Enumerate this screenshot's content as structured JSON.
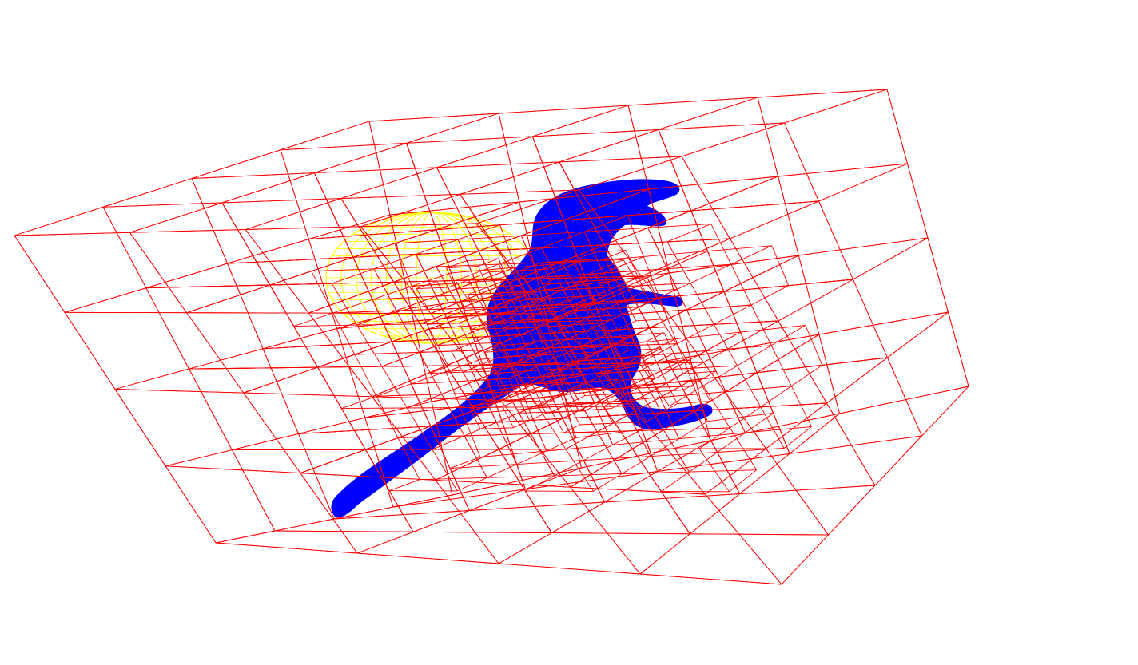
{
  "scene": {
    "background_color": "#ffffff",
    "objects": [
      {
        "name": "octree-bounding-cells",
        "kind": "wireframe-octree",
        "color": "#ff0000"
      },
      {
        "name": "ellipsoid-mesh",
        "kind": "wireframe-ellipsoid",
        "color": "#ffff00"
      },
      {
        "name": "dinosaur-model",
        "kind": "solid-mesh",
        "color": "#0000ff"
      }
    ]
  }
}
